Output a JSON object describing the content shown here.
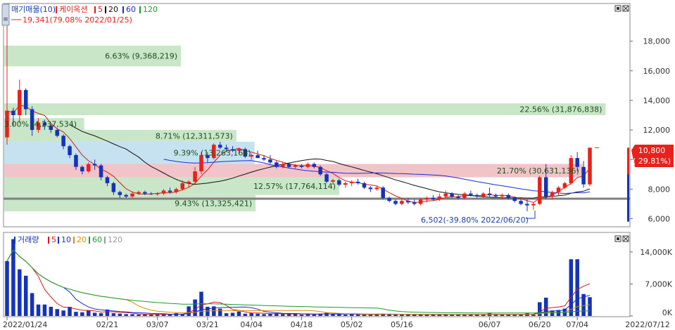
{
  "price_panel": {
    "legend": {
      "title": "매기매물(10)",
      "stock": "케이옥션",
      "ma5": "5",
      "ma20": "20",
      "ma60": "60",
      "ma120": "120"
    },
    "icon": "chart-settings-icon"
  },
  "volume_panel": {
    "legend": {
      "title": "거래량",
      "ma5": "5",
      "ma10": "10",
      "ma20": "20",
      "ma60": "60",
      "ma120": "120"
    }
  },
  "annotations": {
    "high": "19,341(79.08% 2022/01/25)",
    "low": "6,502(-39.80% 2022/06/20)",
    "last_price": "10,800",
    "last_change": "( 29.81%)"
  },
  "colors": {
    "up": "#e8211b",
    "down": "#1533b8",
    "ma5": "#d61a1a",
    "ma20": "#1f2bd1",
    "ma60": "#d88f00",
    "ma120": "#1b9c2e",
    "ma_black": "#111111",
    "vp_green": "#c9e6c9",
    "vp_blue": "#c6e1f0",
    "vp_pink": "#f1c4c9"
  },
  "chart_data": [
    {
      "type": "candlestick",
      "title": "매기매물(10)",
      "stock": "케이옥션",
      "y_ticks": [
        "18,000",
        "16,000",
        "14,000",
        "12,000",
        "10,000",
        "8,000",
        "6,000"
      ],
      "ylim": [
        5500,
        20500
      ],
      "x_ticks": [
        "2022/01/24",
        "02/21",
        "03/07",
        "03/21",
        "04/04",
        "04/18",
        "05/02",
        "05/16",
        "06/07",
        "06/20",
        "07/04",
        "2022/07/12"
      ],
      "volume_profile": [
        {
          "label": "6.63% (9,368,219)",
          "low": 16300,
          "high": 17700,
          "pct": 6.63
        },
        {
          "label": "22.56% (31,876,838)",
          "low": 13000,
          "high": 13800,
          "pct": 22.56
        },
        {
          "label": "3.00% (4,237,534)",
          "low": 12000,
          "high": 12800,
          "pct": 3.0
        },
        {
          "label": "8.71% (12,311,573)",
          "low": 11200,
          "high": 12000,
          "pct": 8.71
        },
        {
          "label": "9.39% (13,263,166)",
          "low": 9700,
          "high": 11200,
          "pct": 9.39
        },
        {
          "label": "21.70% (30,631,136)",
          "low": 8800,
          "high": 9700,
          "pct": 21.7
        },
        {
          "label": "12.57% (17,764,114)",
          "low": 7600,
          "high": 8800,
          "pct": 12.57
        },
        {
          "label": "9.43% (13,325,421)",
          "low": 6500,
          "high": 7600,
          "pct": 9.43
        }
      ],
      "reference_line": 7350,
      "last_price": 10800,
      "candles": [
        [
          11500,
          19341,
          11000,
          13300
        ],
        [
          13300,
          13500,
          12300,
          13000
        ],
        [
          13000,
          15400,
          12500,
          14700
        ],
        [
          14700,
          14800,
          13000,
          13400
        ],
        [
          13400,
          13600,
          11600,
          12000
        ],
        [
          12000,
          12800,
          11800,
          12500
        ],
        [
          12500,
          12700,
          12000,
          12300
        ],
        [
          12300,
          12400,
          11800,
          12000
        ],
        [
          12000,
          12100,
          11500,
          11600
        ],
        [
          11600,
          11700,
          10700,
          10900
        ],
        [
          10900,
          11000,
          10100,
          10300
        ],
        [
          10300,
          10400,
          9300,
          9500
        ],
        [
          9500,
          9600,
          9000,
          9200
        ],
        [
          9200,
          9800,
          9100,
          9700
        ],
        [
          9700,
          10000,
          9300,
          9600
        ],
        [
          9600,
          9700,
          8600,
          8800
        ],
        [
          8800,
          8900,
          8200,
          8400
        ],
        [
          8400,
          8500,
          7600,
          7800
        ],
        [
          7800,
          7900,
          7400,
          7600
        ],
        [
          7600,
          7700,
          7400,
          7500
        ],
        [
          7500,
          7800,
          7400,
          7700
        ],
        [
          7700,
          7900,
          7600,
          7800
        ],
        [
          7800,
          7900,
          7600,
          7700
        ],
        [
          7700,
          7800,
          7600,
          7650
        ],
        [
          7650,
          7800,
          7550,
          7700
        ],
        [
          7700,
          8000,
          7600,
          7900
        ],
        [
          7900,
          8100,
          7700,
          7800
        ],
        [
          7800,
          8100,
          7700,
          8000
        ],
        [
          8000,
          8600,
          7900,
          8400
        ],
        [
          8400,
          8600,
          8100,
          8500
        ],
        [
          8500,
          9500,
          8400,
          9200
        ],
        [
          9200,
          10500,
          9000,
          10300
        ],
        [
          10300,
          10500,
          9800,
          10100
        ],
        [
          10100,
          11100,
          10000,
          11000
        ],
        [
          11000,
          11200,
          10700,
          10800
        ],
        [
          10800,
          11000,
          10500,
          10700
        ],
        [
          10700,
          10900,
          10500,
          10600
        ],
        [
          10600,
          10800,
          10400,
          10700
        ],
        [
          10700,
          10800,
          10100,
          10200
        ],
        [
          10200,
          10400,
          10000,
          10300
        ],
        [
          10300,
          10600,
          10100,
          10100
        ],
        [
          10100,
          10300,
          9900,
          10000
        ],
        [
          10000,
          10300,
          9700,
          9800
        ],
        [
          9800,
          9900,
          9400,
          9500
        ],
        [
          9500,
          9800,
          9400,
          9700
        ],
        [
          9700,
          9800,
          9400,
          9500
        ],
        [
          9500,
          9700,
          9400,
          9600
        ],
        [
          9600,
          9700,
          9400,
          9500
        ],
        [
          9500,
          9800,
          9400,
          9700
        ],
        [
          9700,
          9800,
          9400,
          9500
        ],
        [
          9500,
          9600,
          8900,
          9000
        ],
        [
          9000,
          9100,
          8400,
          8500
        ],
        [
          8500,
          8700,
          8300,
          8600
        ],
        [
          8600,
          8700,
          8200,
          8300
        ],
        [
          8300,
          8500,
          8100,
          8400
        ],
        [
          8400,
          8600,
          8200,
          8500
        ],
        [
          8500,
          8700,
          8300,
          8400
        ],
        [
          8400,
          8500,
          8000,
          8100
        ],
        [
          8100,
          8200,
          7800,
          8000
        ],
        [
          8000,
          8200,
          7900,
          8100
        ],
        [
          8100,
          8200,
          7300,
          7400
        ],
        [
          7400,
          7500,
          7100,
          7200
        ],
        [
          7200,
          7300,
          6900,
          7000
        ],
        [
          7000,
          7300,
          6900,
          7200
        ],
        [
          7200,
          7400,
          7000,
          7100
        ],
        [
          7100,
          7300,
          6900,
          7000
        ],
        [
          7000,
          7400,
          6900,
          7300
        ],
        [
          7300,
          7500,
          7100,
          7400
        ],
        [
          7400,
          7600,
          7200,
          7300
        ],
        [
          7300,
          7700,
          7200,
          7500
        ],
        [
          7500,
          7900,
          7400,
          7700
        ],
        [
          7700,
          7800,
          7400,
          7500
        ],
        [
          7500,
          7600,
          7300,
          7400
        ],
        [
          7400,
          7800,
          7300,
          7700
        ],
        [
          7700,
          7900,
          7500,
          7600
        ],
        [
          7600,
          7700,
          7400,
          7500
        ],
        [
          7500,
          7800,
          7400,
          7700
        ],
        [
          7700,
          8100,
          7500,
          7600
        ],
        [
          7600,
          7700,
          7400,
          7500
        ],
        [
          7500,
          7700,
          7300,
          7600
        ],
        [
          7600,
          7700,
          7300,
          7400
        ],
        [
          7400,
          7500,
          7100,
          7200
        ],
        [
          7200,
          7300,
          6900,
          7000
        ],
        [
          7000,
          7300,
          6502,
          6900
        ],
        [
          6900,
          7100,
          6600,
          7000
        ],
        [
          7000,
          8900,
          6900,
          8800
        ],
        [
          8800,
          9700,
          7300,
          7500
        ],
        [
          7500,
          7900,
          7300,
          7800
        ],
        [
          7800,
          8200,
          7600,
          8100
        ],
        [
          8100,
          8500,
          8000,
          8400
        ],
        [
          8400,
          10300,
          8300,
          10100
        ],
        [
          10100,
          10500,
          9200,
          9500
        ],
        [
          9500,
          9900,
          8100,
          8320
        ],
        [
          8320,
          10800,
          8200,
          10800
        ]
      ],
      "volume_ticks": [
        "14,000K",
        "7,000K",
        "0K"
      ],
      "volume_ylim": [
        0,
        17500
      ],
      "volume": [
        12000,
        16800,
        10200,
        8800,
        5000,
        2500,
        2500,
        2000,
        1500,
        1200,
        2000,
        900,
        800,
        1200,
        700,
        600,
        1400,
        600,
        500,
        400,
        400,
        300,
        300,
        300,
        400,
        400,
        300,
        600,
        300,
        2100,
        3600,
        5300,
        2000,
        2100,
        1600,
        600,
        700,
        1000,
        500,
        600,
        500,
        400,
        500,
        600,
        400,
        400,
        500,
        300,
        400,
        300,
        500,
        700,
        400,
        400,
        300,
        400,
        300,
        300,
        300,
        400,
        500,
        400,
        300,
        300,
        300,
        300,
        400,
        300,
        300,
        300,
        400,
        300,
        300,
        300,
        400,
        300,
        300,
        600,
        300,
        300,
        300,
        300,
        400,
        600,
        300,
        3000,
        4000,
        1200,
        1300,
        1600,
        12400,
        12400,
        4800,
        4100
      ]
    }
  ]
}
